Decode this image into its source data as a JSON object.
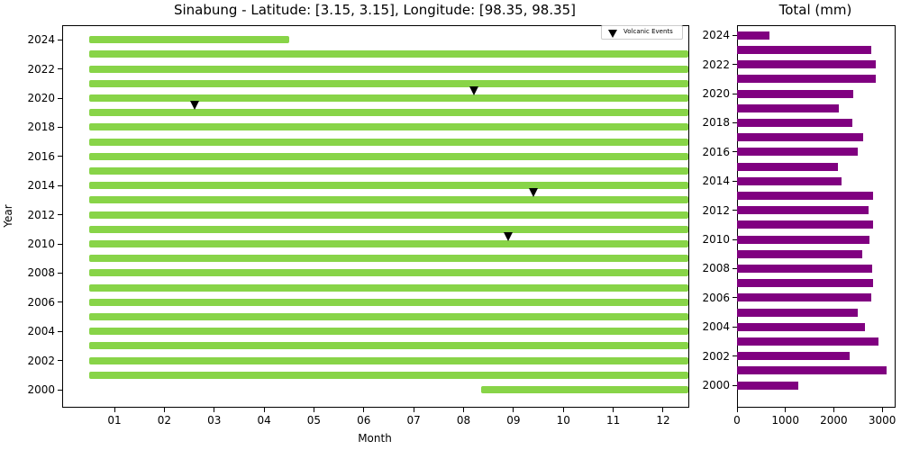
{
  "chart_data": [
    {
      "type": "timeline",
      "title": "Sinabung - Latitude: [3.15, 3.15], Longitude: [98.35, 98.35]",
      "xlabel": "Month",
      "ylabel": "Year",
      "x_ticks": [
        "01",
        "02",
        "03",
        "04",
        "05",
        "06",
        "07",
        "08",
        "09",
        "10",
        "11",
        "12"
      ],
      "y_ticks": [
        "2000",
        "2002",
        "2004",
        "2006",
        "2008",
        "2010",
        "2012",
        "2014",
        "2016",
        "2018",
        "2020",
        "2022",
        "2024"
      ],
      "bar_color": "#88d448",
      "data_coverage": [
        {
          "year": 2000,
          "start_month": 8.35,
          "end_month": 12.5
        },
        {
          "year": 2001,
          "start_month": 0.5,
          "end_month": 12.5
        },
        {
          "year": 2002,
          "start_month": 0.5,
          "end_month": 12.5
        },
        {
          "year": 2003,
          "start_month": 0.5,
          "end_month": 12.5
        },
        {
          "year": 2004,
          "start_month": 0.5,
          "end_month": 12.5
        },
        {
          "year": 2005,
          "start_month": 0.5,
          "end_month": 12.5
        },
        {
          "year": 2006,
          "start_month": 0.5,
          "end_month": 12.5
        },
        {
          "year": 2007,
          "start_month": 0.5,
          "end_month": 12.5
        },
        {
          "year": 2008,
          "start_month": 0.5,
          "end_month": 12.5
        },
        {
          "year": 2009,
          "start_month": 0.5,
          "end_month": 12.5
        },
        {
          "year": 2010,
          "start_month": 0.5,
          "end_month": 12.5
        },
        {
          "year": 2011,
          "start_month": 0.5,
          "end_month": 12.5
        },
        {
          "year": 2012,
          "start_month": 0.5,
          "end_month": 12.5
        },
        {
          "year": 2013,
          "start_month": 0.5,
          "end_month": 12.5
        },
        {
          "year": 2014,
          "start_month": 0.5,
          "end_month": 12.5
        },
        {
          "year": 2015,
          "start_month": 0.5,
          "end_month": 12.5
        },
        {
          "year": 2016,
          "start_month": 0.5,
          "end_month": 12.5
        },
        {
          "year": 2017,
          "start_month": 0.5,
          "end_month": 12.5
        },
        {
          "year": 2018,
          "start_month": 0.5,
          "end_month": 12.5
        },
        {
          "year": 2019,
          "start_month": 0.5,
          "end_month": 12.5
        },
        {
          "year": 2020,
          "start_month": 0.5,
          "end_month": 12.5
        },
        {
          "year": 2021,
          "start_month": 0.5,
          "end_month": 12.5
        },
        {
          "year": 2022,
          "start_month": 0.5,
          "end_month": 12.5
        },
        {
          "year": 2023,
          "start_month": 0.5,
          "end_month": 12.5
        },
        {
          "year": 2024,
          "start_month": 0.5,
          "end_month": 4.5
        }
      ],
      "volcanic_events": [
        {
          "year": 2010,
          "month": 8.9
        },
        {
          "year": 2013,
          "month": 9.4
        },
        {
          "year": 2019,
          "month": 2.6
        },
        {
          "year": 2020,
          "month": 8.2
        }
      ],
      "legend": [
        {
          "label": "Volcanic Events",
          "marker": "triangle-down",
          "color": "#000000"
        }
      ],
      "legend_position": "upper right"
    },
    {
      "type": "bar",
      "orientation": "horizontal",
      "title": "Total (mm)",
      "color": "#800080",
      "categories": [
        2000,
        2001,
        2002,
        2003,
        2004,
        2005,
        2006,
        2007,
        2008,
        2009,
        2010,
        2011,
        2012,
        2013,
        2014,
        2015,
        2016,
        2017,
        2018,
        2019,
        2020,
        2021,
        2022,
        2023,
        2024
      ],
      "values": [
        1260,
        3090,
        2330,
        2920,
        2640,
        2500,
        2775,
        2810,
        2790,
        2590,
        2740,
        2810,
        2720,
        2810,
        2160,
        2090,
        2500,
        2610,
        2380,
        2100,
        2400,
        2870,
        2870,
        2775,
        670
      ],
      "x_ticks": [
        "0",
        "1000",
        "2000",
        "3000"
      ],
      "y_ticks": [
        "2000",
        "2002",
        "2004",
        "2006",
        "2008",
        "2010",
        "2012",
        "2014",
        "2016",
        "2018",
        "2020",
        "2022",
        "2024"
      ],
      "xlim": [
        0,
        3250
      ]
    }
  ]
}
